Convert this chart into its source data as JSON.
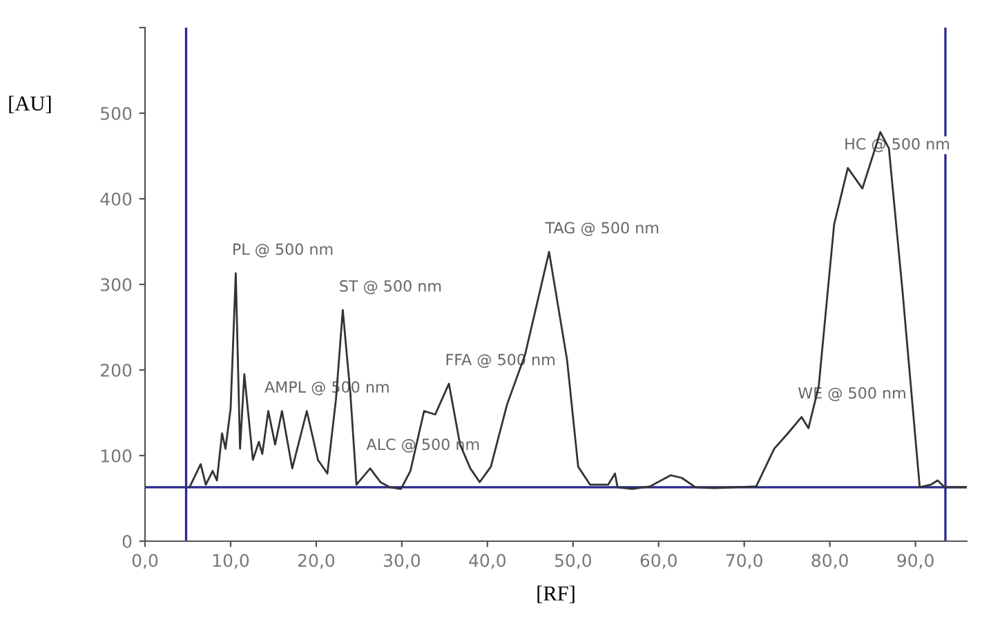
{
  "chart_data": {
    "type": "line",
    "xlabel": "[RF]",
    "ylabel": "[AU]",
    "xlim": [
      0,
      96
    ],
    "ylim": [
      0,
      600
    ],
    "xticks": [
      {
        "value": 0,
        "label": "0,0"
      },
      {
        "value": 10,
        "label": "10,0"
      },
      {
        "value": 20,
        "label": "20,0"
      },
      {
        "value": 30,
        "label": "30,0"
      },
      {
        "value": 40,
        "label": "40,0"
      },
      {
        "value": 50,
        "label": "50,0"
      },
      {
        "value": 60,
        "label": "60,0"
      },
      {
        "value": 70,
        "label": "70,0"
      },
      {
        "value": 80,
        "label": "80,0"
      },
      {
        "value": 90,
        "label": "90,0"
      }
    ],
    "yticks": [
      0,
      100,
      200,
      300,
      400,
      500,
      {
        "value": 600,
        "label": null
      }
    ],
    "grid": false,
    "legend": false,
    "marker": "none",
    "line_style": "solid",
    "series": [
      {
        "color": "#333333",
        "x": [
          5.2,
          6.5,
          7.1,
          7.9,
          8.4,
          9.0,
          9.4,
          10.0,
          10.6,
          11.1,
          11.6,
          12.6,
          13.3,
          13.7,
          14.4,
          15.2,
          16.0,
          17.2,
          18.9,
          20.2,
          21.3,
          22.3,
          23.1,
          24.0,
          24.7,
          26.3,
          27.5,
          28.6,
          29.9,
          31.0,
          32.6,
          33.9,
          35.5,
          36.8,
          38.0,
          39.1,
          40.4,
          42.3,
          44.4,
          47.2,
          49.3,
          50.6,
          52.0,
          54.1,
          54.9,
          55.2,
          56.9,
          59.0,
          61.4,
          62.7,
          64.3,
          66.5,
          71.4,
          73.5,
          75.1,
          76.7,
          77.5,
          78.7,
          80.5,
          82.1,
          83.8,
          85.9,
          86.9,
          88.5,
          90.5,
          91.8,
          92.6,
          93.4,
          96.0
        ],
        "values": [
          63,
          90,
          66,
          82,
          71,
          126,
          108,
          155,
          313,
          108,
          195,
          95,
          116,
          102,
          152,
          113,
          152,
          85,
          152,
          95,
          79,
          165,
          270,
          171,
          66,
          85,
          69,
          63,
          61,
          82,
          152,
          148,
          184,
          113,
          85,
          69,
          87,
          160,
          218,
          338,
          212,
          87,
          66,
          66,
          79,
          63,
          61,
          64,
          77,
          74,
          63,
          62,
          64,
          108,
          126,
          145,
          132,
          181,
          370,
          436,
          412,
          478,
          459,
          291,
          63,
          66,
          71,
          63,
          63
        ]
      }
    ],
    "ref_lines": [
      {
        "axis": "y",
        "value": 63,
        "color": "#2b2b8c"
      },
      {
        "axis": "x",
        "value": 4.8,
        "color": "#2b2b8c"
      },
      {
        "axis": "x",
        "value": 93.5,
        "color": "#2b2b8c"
      }
    ],
    "annotations": [
      {
        "text": "PL @ 500 nm",
        "x": 10.6,
        "y": 313
      },
      {
        "text": "AMPL @ 500 nm",
        "x": 14.4,
        "y": 152
      },
      {
        "text": "ST @ 500 nm",
        "x": 23.1,
        "y": 270
      },
      {
        "text": "ALC @ 500 nm",
        "x": 26.3,
        "y": 85
      },
      {
        "text": "FFA @ 500 nm",
        "x": 35.5,
        "y": 184
      },
      {
        "text": "TAG @ 500 nm",
        "x": 47.2,
        "y": 338
      },
      {
        "text": "WE @ 500 nm",
        "x": 76.7,
        "y": 145
      },
      {
        "text": "HC @ 500 nm",
        "x": 82.1,
        "y": 436
      }
    ]
  }
}
